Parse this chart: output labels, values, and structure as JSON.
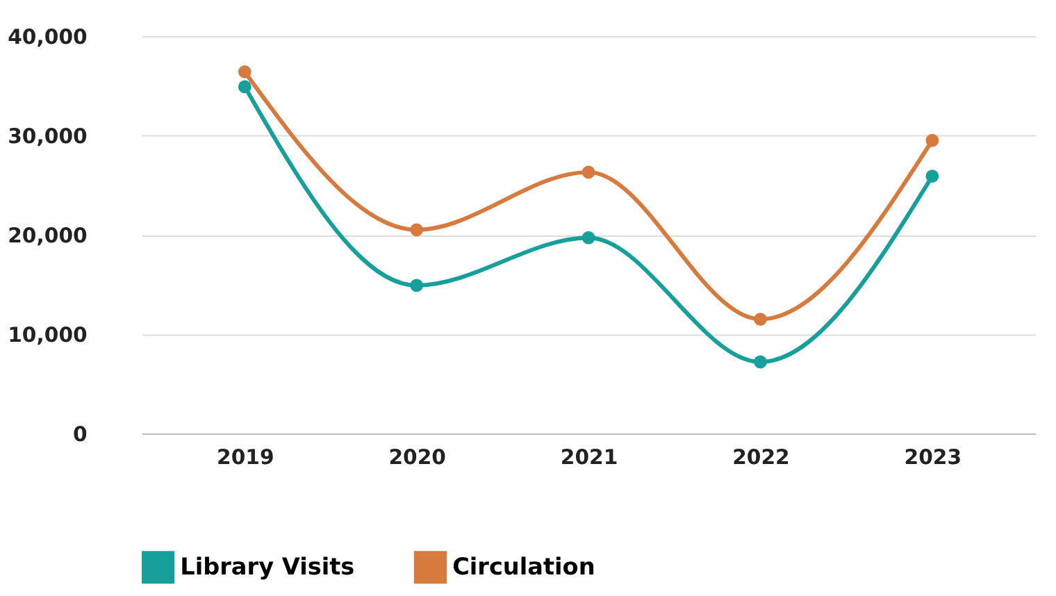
{
  "chart_data": {
    "type": "line",
    "categories": [
      "2019",
      "2020",
      "2021",
      "2022",
      "2023"
    ],
    "series": [
      {
        "name": "Library Visits",
        "color": "#17a09b",
        "values": [
          34900,
          14900,
          19700,
          7200,
          25900
        ]
      },
      {
        "name": "Circulation",
        "color": "#d67a3e",
        "values": [
          36400,
          20500,
          26300,
          11500,
          29500
        ]
      }
    ],
    "ylim": [
      0,
      40000
    ],
    "yticks": [
      0,
      {
        "value": 10000,
        "label": "10,000"
      },
      {
        "value": 20000,
        "label": "20,000"
      },
      {
        "value": 30000,
        "label": "30,000"
      },
      {
        "value": 40000,
        "label": "40,000"
      }
    ],
    "grid": "y",
    "legend": "bottom",
    "marker": "circle",
    "line_style": "solid"
  }
}
